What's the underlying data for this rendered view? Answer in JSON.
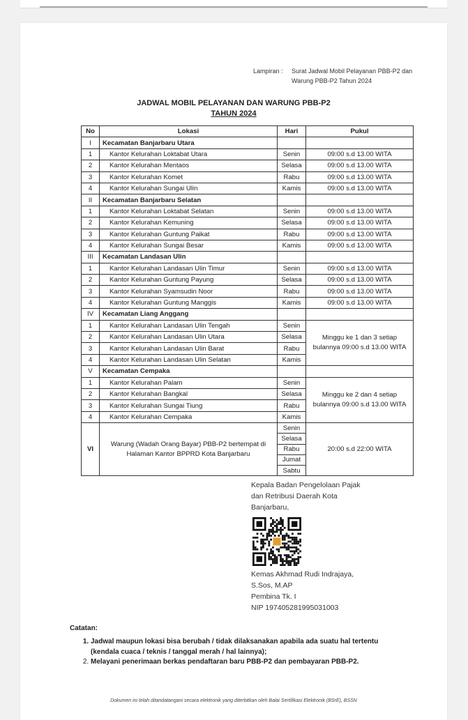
{
  "lampiran": {
    "label": "Lampiran :",
    "line1": "Surat Jadwal Mobil Pelayanan PBB-P2 dan",
    "line2": "Warung PBB-P2 Tahun 2024"
  },
  "title": {
    "line1": "JADWAL MOBIL PELAYANAN DAN WARUNG PBB-P2",
    "line2": "TAHUN 2024"
  },
  "table": {
    "headers": [
      "No",
      "Lokasi",
      "Hari",
      "Pukul"
    ],
    "groups": [
      {
        "no": "I",
        "name": "Kecamatan Banjarbaru Utara",
        "merged_pukul": null,
        "rows": [
          {
            "no": "1",
            "lokasi": "Kantor Kelurahan Loktabat Utara",
            "hari": "Senin",
            "pukul": "09:00 s.d 13.00 WITA"
          },
          {
            "no": "2",
            "lokasi": "Kantor Kelurahan Mentaos",
            "hari": "Selasa",
            "pukul": "09:00 s.d 13.00 WITA"
          },
          {
            "no": "3",
            "lokasi": "Kantor Kelurahan Komet",
            "hari": "Rabu",
            "pukul": "09:00 s.d 13.00 WITA"
          },
          {
            "no": "4",
            "lokasi": "Kantor Kelurahan Sungai Ulin",
            "hari": "Kamis",
            "pukul": "09:00 s.d 13.00 WITA"
          }
        ]
      },
      {
        "no": "II",
        "name": "Kecamatan Banjarbaru Selatan",
        "merged_pukul": null,
        "rows": [
          {
            "no": "1",
            "lokasi": "Kantor Kelurahan Loktabat Selatan",
            "hari": "Senin",
            "pukul": "09:00 s.d 13.00 WITA"
          },
          {
            "no": "2",
            "lokasi": "Kantor Kelurahan Kemuning",
            "hari": "Selasa",
            "pukul": "09:00 s.d 13.00 WITA"
          },
          {
            "no": "3",
            "lokasi": "Kantor Kelurahan Guntung Paikat",
            "hari": "Rabu",
            "pukul": "09:00 s.d 13.00 WITA"
          },
          {
            "no": "4",
            "lokasi": "Kantor Kelurahan Sungai Besar",
            "hari": "Kamis",
            "pukul": "09:00 s.d 13.00 WITA"
          }
        ]
      },
      {
        "no": "III",
        "name": "Kecamatan Landasan Ulin",
        "merged_pukul": null,
        "rows": [
          {
            "no": "1",
            "lokasi": "Kantor Kelurahan Landasan Ulin Timur",
            "hari": "Senin",
            "pukul": "09:00 s.d 13.00 WITA"
          },
          {
            "no": "2",
            "lokasi": "Kantor Kelurahan Guntung Payung",
            "hari": "Selasa",
            "pukul": "09:00 s.d 13.00 WITA"
          },
          {
            "no": "3",
            "lokasi": "Kantor Kelurahan Syamsudin Noor",
            "hari": "Rabu",
            "pukul": "09:00 s.d 13.00 WITA"
          },
          {
            "no": "4",
            "lokasi": "Kantor Kelurahan Guntung Manggis",
            "hari": "Kamis",
            "pukul": "09:00 s.d 13.00 WITA"
          }
        ]
      },
      {
        "no": "IV",
        "name": "Kecamatan Liang Anggang",
        "merged_pukul": "Minggu ke 1 dan 3 setiap bulannya 09:00 s.d 13.00 WITA",
        "rows": [
          {
            "no": "1",
            "lokasi": "Kantor Kelurahan Landasan Ulin Tengah",
            "hari": "Senin"
          },
          {
            "no": "2",
            "lokasi": "Kantor Kelurahan Landasan Ulin Utara",
            "hari": "Selasa"
          },
          {
            "no": "3",
            "lokasi": "Kantor Kelurahan Landasan Ulin Barat",
            "hari": "Rabu"
          },
          {
            "no": "4",
            "lokasi": "Kantor Kelurahan Landasan Ulin Selatan",
            "hari": "Kamis"
          }
        ]
      },
      {
        "no": "V",
        "name": "Kecamatan Cempaka",
        "merged_pukul": "Minggu ke 2 dan 4 setiap bulannya 09:00 s.d 13.00 WITA",
        "rows": [
          {
            "no": "1",
            "lokasi": "Kantor Kelurahan Palam",
            "hari": "Senin"
          },
          {
            "no": "2",
            "lokasi": "Kantor Kelurahan Bangkal",
            "hari": "Selasa"
          },
          {
            "no": "3",
            "lokasi": "Kantor Kelurahan Sungai Tiung",
            "hari": "Rabu"
          },
          {
            "no": "4",
            "lokasi": "Kantor Kelurahan Cempaka",
            "hari": "Kamis"
          }
        ]
      }
    ],
    "warung": {
      "no": "VI",
      "lokasi": "Warung (Wadah Orang Bayar) PBB-P2 bertempat di Halaman Kantor BPPRD Kota Banjarbaru",
      "hari": [
        "Senin",
        "Selasa",
        "Rabu",
        "Jumat",
        "Sabtu"
      ],
      "pukul": "20:00 s.d 22:00 WITA"
    }
  },
  "signature": {
    "office": [
      "Kepala Badan Pengelolaan Pajak",
      "dan Retribusi Daerah Kota",
      "Banjarbaru,"
    ],
    "name": [
      "Kemas Akhmad Rudi Indrajaya,",
      "S.Sos, M.AP",
      "Pembina Tk. I",
      "NIP 197405281995031003"
    ],
    "qr_logo_color": "#e0a030"
  },
  "notes": {
    "heading": "Catatan:",
    "items": [
      "Jadwal maupun lokasi bisa berubah / tidak dilaksanakan apabila ada suatu hal tertentu (kendala cuaca / teknis / tanggal merah / hal lainnya);",
      "Melayani penerimaan berkas pendaftaran baru PBB-P2 dan pembayaran PBB-P2."
    ]
  },
  "footer": "Dokumen ini telah ditandatangani secara elektronik yang diterbitkan oleh Balai Sertifikasi Elektronik (BSrE), BSSN"
}
